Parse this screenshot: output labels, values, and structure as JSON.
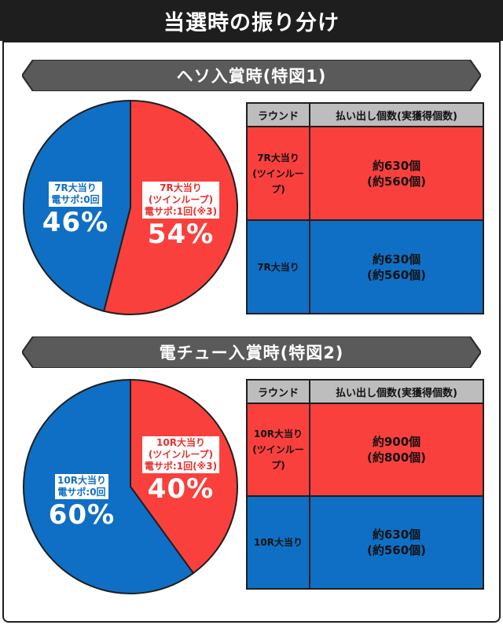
{
  "title": "当選時の振り分け",
  "colors": {
    "red": "#fa403d",
    "blue": "#0f6fc4",
    "dark": "#1e1e1e",
    "header": "#bdbdbd"
  },
  "sections": [
    {
      "heading": "ヘソ入賞時(特図1)",
      "table": {
        "headers": [
          "ラウンド",
          "払い出し個数(実獲得個数)"
        ],
        "rows": [
          {
            "round_line1": "7R大当り",
            "round_line2": "(ツインループ)",
            "count_line1": "約630個",
            "count_line2": "(約560個)",
            "color": "red"
          },
          {
            "round_line1": "7R大当り",
            "round_line2": "",
            "count_line1": "約630個",
            "count_line2": "(約560個)",
            "color": "blue"
          }
        ]
      }
    },
    {
      "heading": "電チュー入賞時(特図2)",
      "table": {
        "headers": [
          "ラウンド",
          "払い出し個数(実獲得個数)"
        ],
        "rows": [
          {
            "round_line1": "10R大当り",
            "round_line2": "(ツインループ)",
            "count_line1": "約900個",
            "count_line2": "(約800個)",
            "color": "red"
          },
          {
            "round_line1": "10R大当り",
            "round_line2": "",
            "count_line1": "約630個",
            "count_line2": "(約560個)",
            "color": "blue"
          }
        ]
      }
    }
  ],
  "chart_data": [
    {
      "type": "pie",
      "slices": [
        {
          "value": 54,
          "color": "#fa403d",
          "label_lines": [
            "7R大当り",
            "(ツインループ)",
            "電サポ:1回(※3)"
          ],
          "pct_text": "54%"
        },
        {
          "value": 46,
          "color": "#0f6fc4",
          "label_lines": [
            "7R大当り",
            "電サポ:0回"
          ],
          "pct_text": "46%"
        }
      ]
    },
    {
      "type": "pie",
      "slices": [
        {
          "value": 40,
          "color": "#fa403d",
          "label_lines": [
            "10R大当り",
            "(ツインループ)",
            "電サポ:1回(※3)"
          ],
          "pct_text": "40%"
        },
        {
          "value": 60,
          "color": "#0f6fc4",
          "label_lines": [
            "10R大当り",
            "電サポ:0回"
          ],
          "pct_text": "60%"
        }
      ]
    }
  ]
}
